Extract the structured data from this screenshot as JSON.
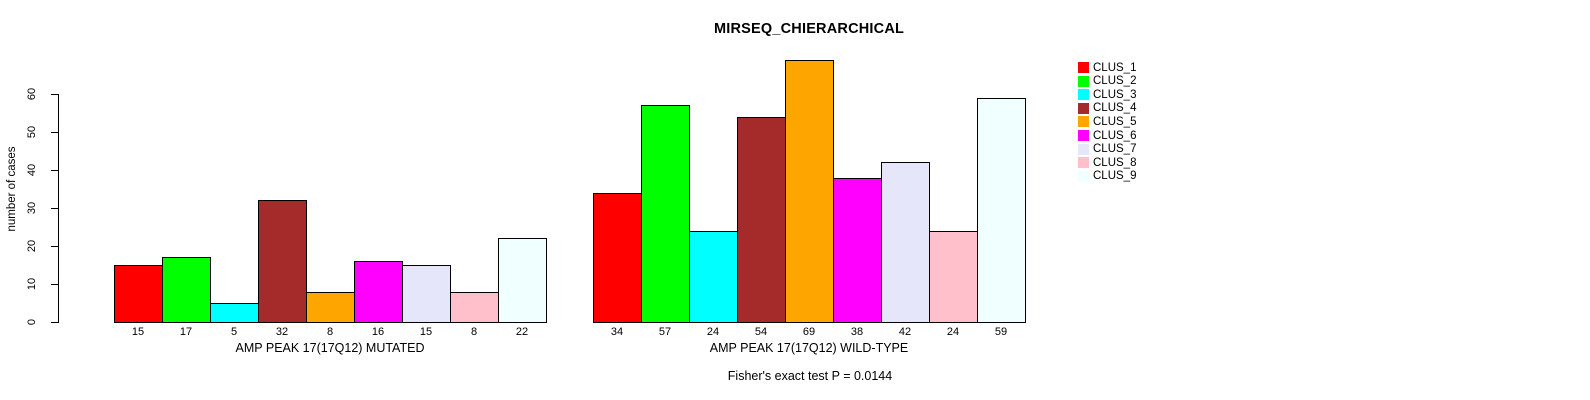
{
  "title": "MIRSEQ_CHIERARCHICAL",
  "footnote": "Fisher's exact test P = 0.0144",
  "y_axis": {
    "label": "number of cases",
    "ticks": [
      0,
      10,
      20,
      30,
      40,
      50,
      60
    ]
  },
  "legend": {
    "items": [
      {
        "label": "CLUS_1",
        "color": "#FF0000"
      },
      {
        "label": "CLUS_2",
        "color": "#00FF00"
      },
      {
        "label": "CLUS_3",
        "color": "#00FFFF"
      },
      {
        "label": "CLUS_4",
        "color": "#A52A2A"
      },
      {
        "label": "CLUS_5",
        "color": "#FFA500"
      },
      {
        "label": "CLUS_6",
        "color": "#FF00FF"
      },
      {
        "label": "CLUS_7",
        "color": "#E6E6FA"
      },
      {
        "label": "CLUS_8",
        "color": "#FFC0CB"
      },
      {
        "label": "CLUS_9",
        "color": "#F0FFFF"
      }
    ]
  },
  "chart_data": {
    "type": "bar",
    "title": "MIRSEQ_CHIERARCHICAL",
    "ylabel": "number of cases",
    "ylim": [
      0,
      69
    ],
    "yticks": [
      0,
      10,
      20,
      30,
      40,
      50,
      60
    ],
    "grid": false,
    "legend_position": "right-outside",
    "annotation": "Fisher's exact test P = 0.0144",
    "series_names": [
      "CLUS_1",
      "CLUS_2",
      "CLUS_3",
      "CLUS_4",
      "CLUS_5",
      "CLUS_6",
      "CLUS_7",
      "CLUS_8",
      "CLUS_9"
    ],
    "series_colors": [
      "#FF0000",
      "#00FF00",
      "#00FFFF",
      "#A52A2A",
      "#FFA500",
      "#FF00FF",
      "#E6E6FA",
      "#FFC0CB",
      "#F0FFFF"
    ],
    "groups": [
      {
        "label": "AMP PEAK 17(17Q12) MUTATED",
        "values": [
          15,
          17,
          5,
          32,
          8,
          16,
          15,
          8,
          22
        ]
      },
      {
        "label": "AMP PEAK 17(17Q12) WILD-TYPE",
        "values": [
          34,
          57,
          24,
          54,
          69,
          38,
          42,
          24,
          59
        ]
      }
    ]
  }
}
